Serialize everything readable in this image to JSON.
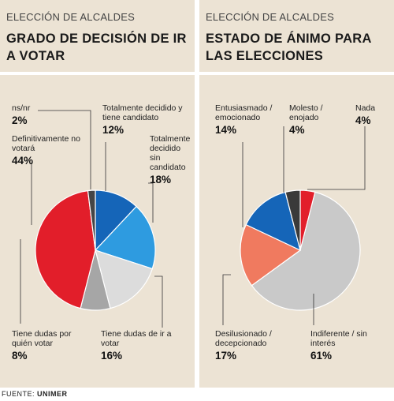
{
  "charts": [
    {
      "section_label": "ELECCIÓN DE ALCALDES",
      "title": "GRADO DE DECISIÓN DE IR A VOTAR"
    },
    {
      "section_label": "ELECCIÓN DE ALCALDES",
      "title": "ESTADO DE ÁNIMO PARA LAS ELECCIONES"
    }
  ],
  "chart_data": [
    {
      "type": "pie",
      "title": "GRADO DE DECISIÓN DE IR A VOTAR",
      "slices": [
        {
          "label": "Totalmente decidido y tiene candidato",
          "value": 12,
          "display": "12%",
          "color": "#1565b8"
        },
        {
          "label": "Totalmente decidido sin candidato",
          "value": 18,
          "display": "18%",
          "color": "#2e9be0"
        },
        {
          "label": "Tiene dudas de ir a votar",
          "value": 16,
          "display": "16%",
          "color": "#dcdcdc"
        },
        {
          "label": "Tiene dudas por quién votar",
          "value": 8,
          "display": "8%",
          "color": "#a6a6a6"
        },
        {
          "label": "Definitivamente no votará",
          "value": 44,
          "display": "44%",
          "color": "#e21e2a"
        },
        {
          "label": "ns/nr",
          "value": 2,
          "display": "2%",
          "color": "#454545"
        }
      ]
    },
    {
      "type": "pie",
      "title": "ESTADO DE ÁNIMO PARA LAS ELECCIONES",
      "slices": [
        {
          "label": "Nada",
          "value": 4,
          "display": "4%",
          "color": "#e21e2a"
        },
        {
          "label": "Indiferente / sin interés",
          "value": 61,
          "display": "61%",
          "color": "#c9c9c9"
        },
        {
          "label": "Desilusionado / decepcionado",
          "value": 17,
          "display": "17%",
          "color": "#f07a5f"
        },
        {
          "label": "Entusiasmado / emocionado",
          "value": 14,
          "display": "14%",
          "color": "#1565b8"
        },
        {
          "label": "Molesto / enojado",
          "value": 4,
          "display": "4%",
          "color": "#3a3a3a"
        }
      ]
    }
  ],
  "source": {
    "prefix": "FUENTE:",
    "name": "UNIMER"
  }
}
